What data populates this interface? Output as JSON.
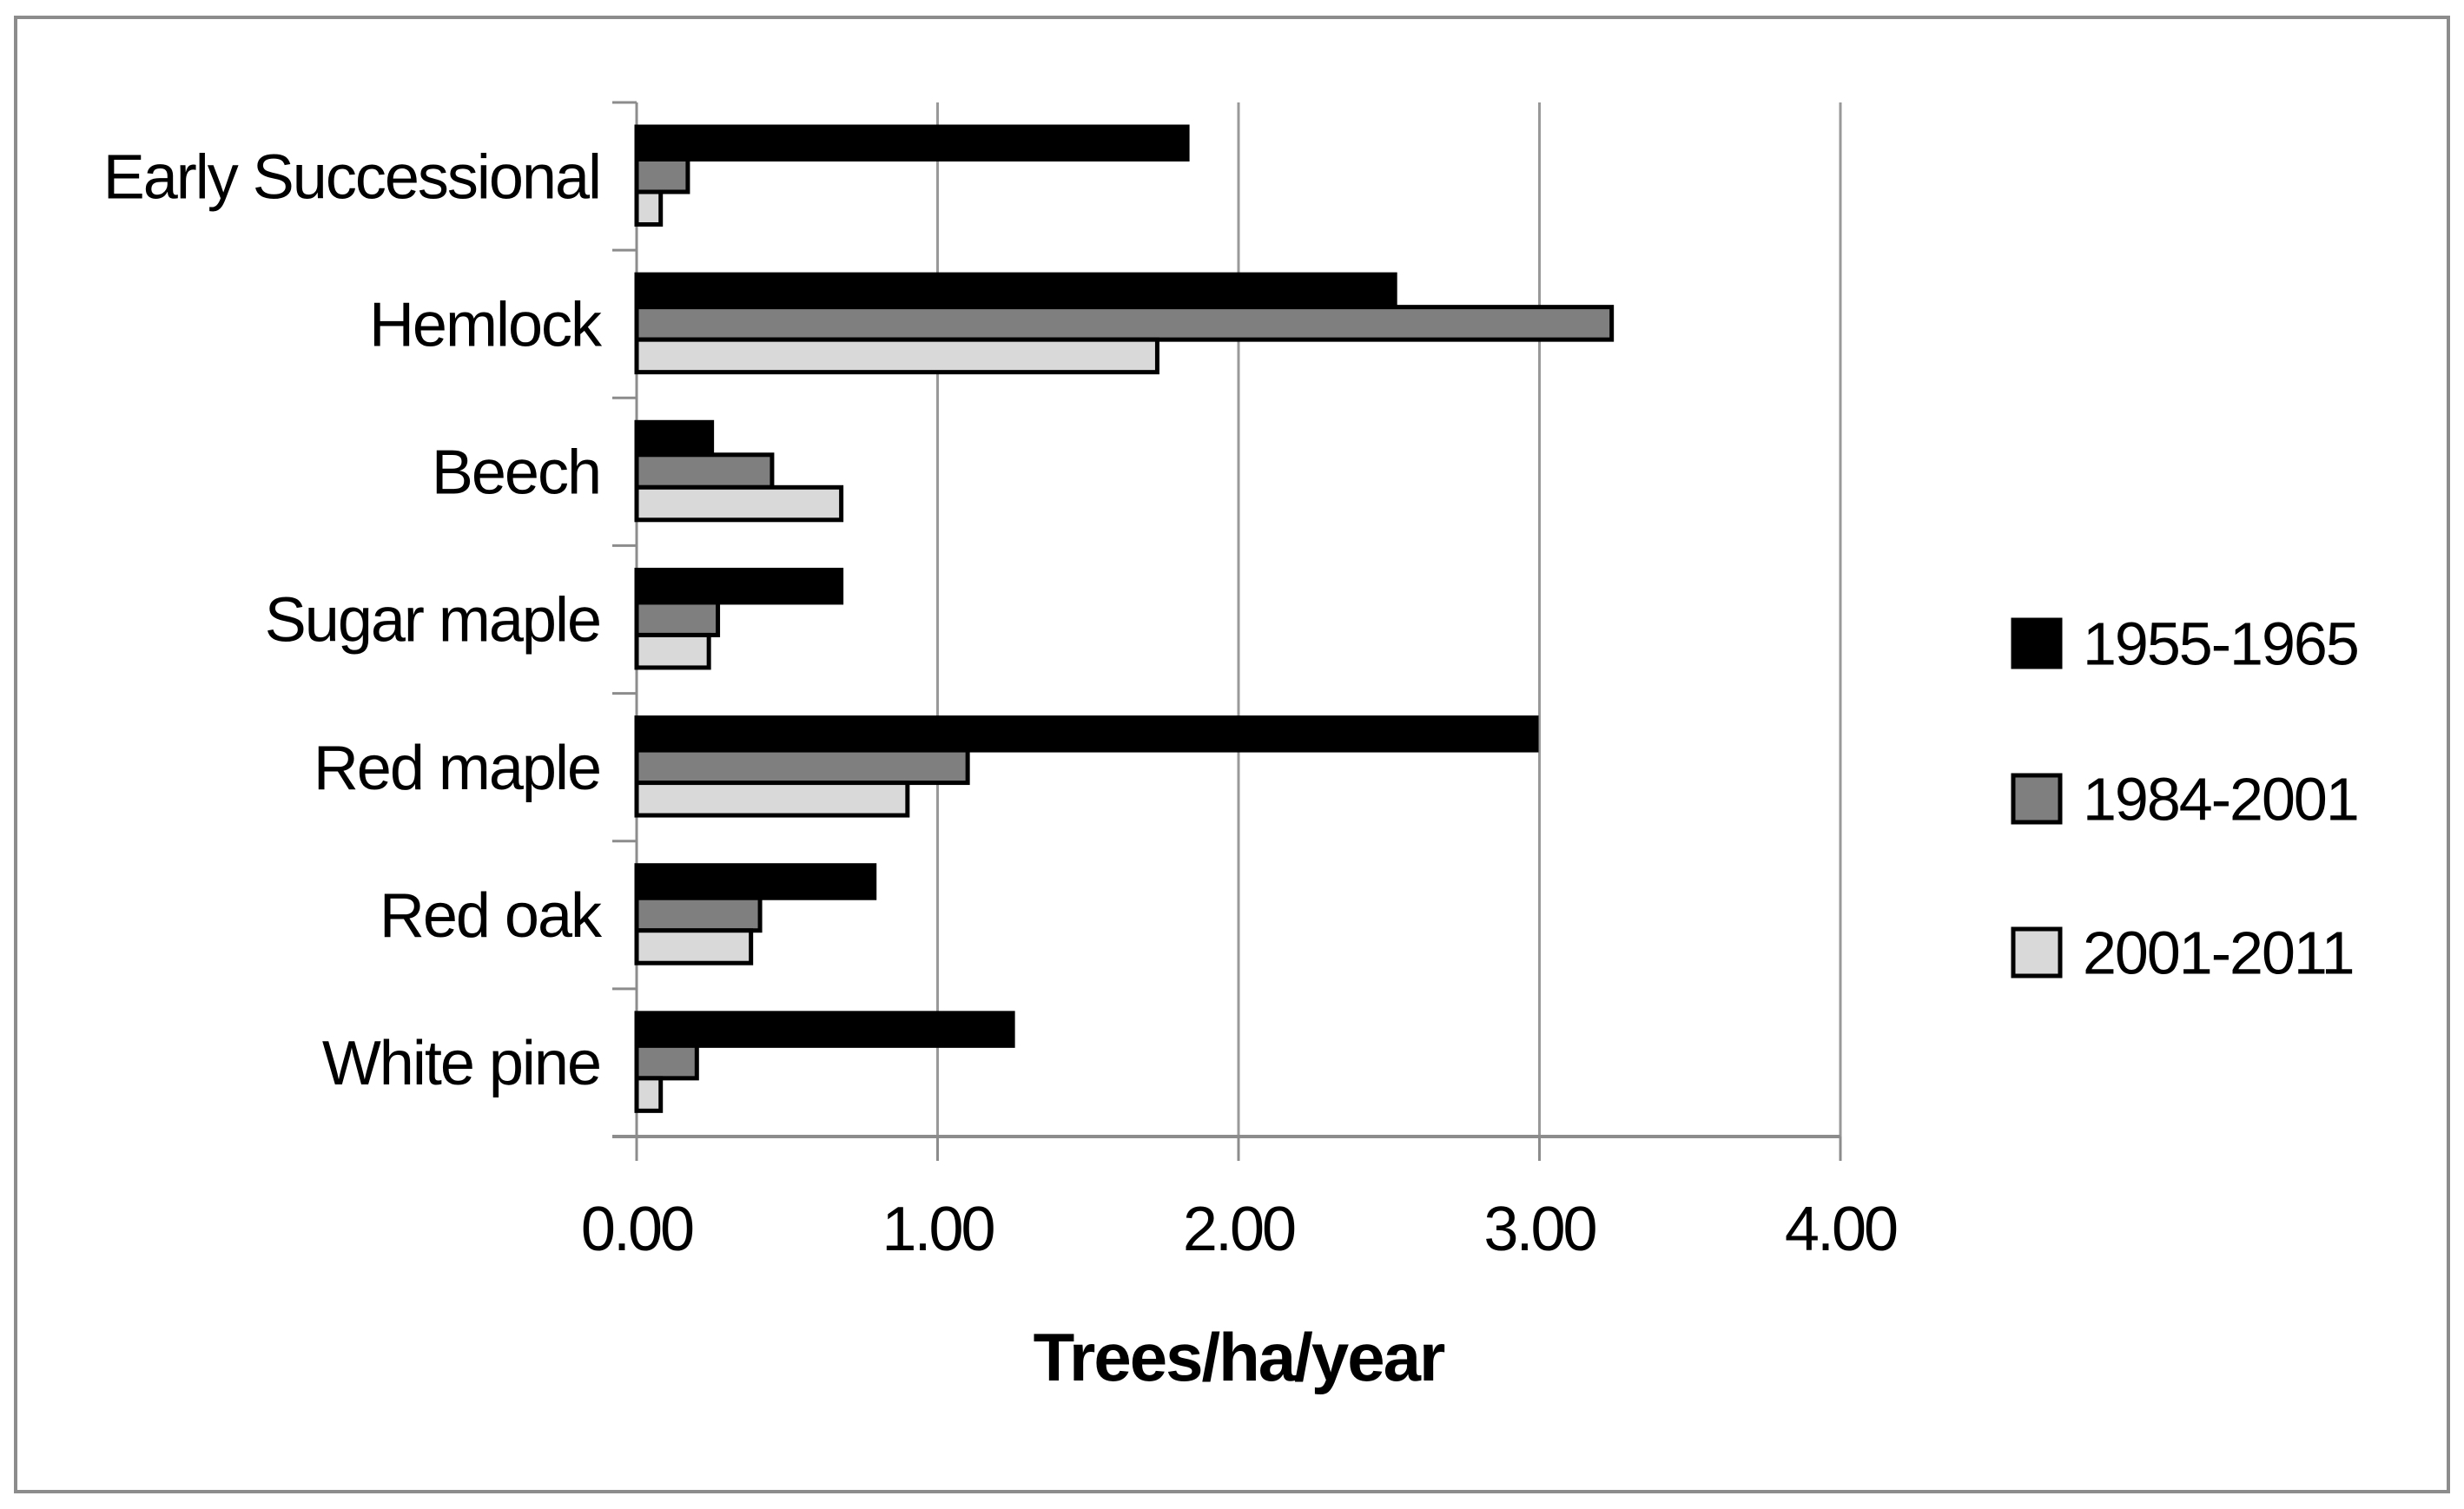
{
  "chart_data": {
    "type": "bar",
    "orientation": "horizontal",
    "title": "",
    "xlabel": "Trees/ha/year",
    "ylabel": "",
    "categories": [
      "Early Successional",
      "Hemlock",
      "Beech",
      "Sugar maple",
      "Red maple",
      "Red oak",
      "White pine"
    ],
    "series": [
      {
        "name": "1955-1965",
        "color": "#000000",
        "values": [
          1.83,
          2.52,
          0.25,
          0.68,
          2.99,
          0.79,
          1.25
        ]
      },
      {
        "name": "1984-2001",
        "color": "#7f7f7f",
        "values": [
          0.17,
          3.24,
          0.45,
          0.27,
          1.1,
          0.41,
          0.2
        ]
      },
      {
        "name": "2001-2011",
        "color": "#d9d9d9",
        "values": [
          0.08,
          1.73,
          0.68,
          0.24,
          0.9,
          0.38,
          0.08
        ]
      }
    ],
    "xlim": [
      0,
      4
    ],
    "xticks": {
      "values": [
        0,
        1,
        2,
        3,
        4
      ],
      "labels": [
        "0.00",
        "1.00",
        "2.00",
        "3.00",
        "4.00"
      ]
    },
    "grid": true,
    "legend_position": "right",
    "bar_outline_color": "#000000",
    "axis_color": "#8c8c8c",
    "gridline_color": "#999999",
    "figure_border_color": "#8c8c8c"
  }
}
